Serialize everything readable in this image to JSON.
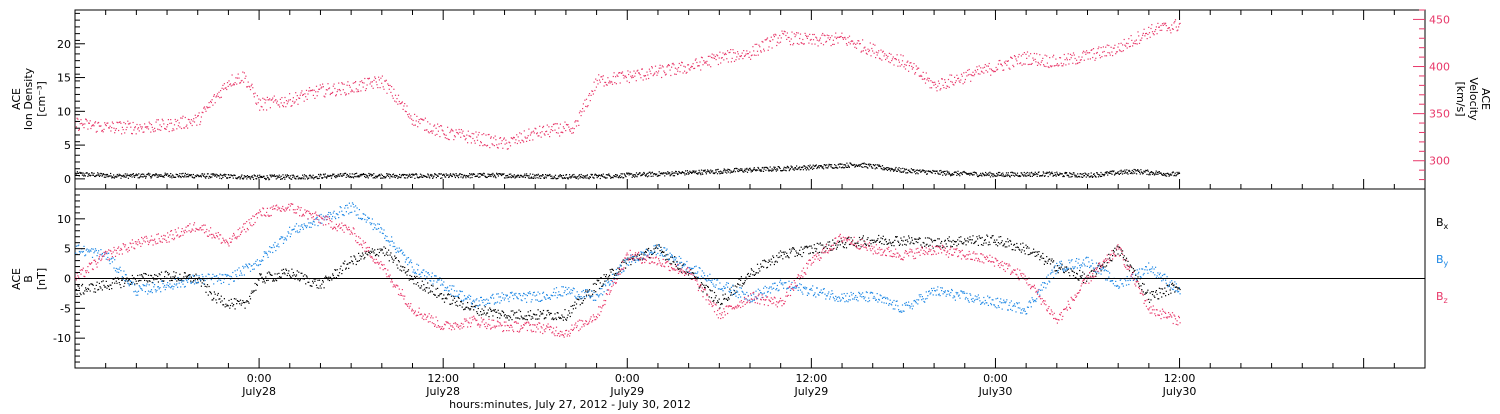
{
  "xaxis": {
    "title": "hours:minutes, July 27, 2012 - July 30, 2012",
    "ticks": [
      {
        "t": 12,
        "time": "0:00",
        "date": "July28"
      },
      {
        "t": 24,
        "time": "12:00",
        "date": "July28"
      },
      {
        "t": 36,
        "time": "0:00",
        "date": "July29"
      },
      {
        "t": 48,
        "time": "12:00",
        "date": "July29"
      },
      {
        "t": 60,
        "time": "0:00",
        "date": "July30"
      },
      {
        "t": 72,
        "time": "12:00",
        "date": "July30"
      }
    ]
  },
  "top_panel": {
    "left_label": [
      "ACE",
      "Ion Density",
      "[cm⁻³]"
    ],
    "right_label": [
      "ACE",
      "Velocity",
      "[km/s]"
    ]
  },
  "bottom_panel": {
    "left_label": [
      "ACE",
      "B",
      "[nT]"
    ],
    "legend": [
      {
        "name": "Bx",
        "base": "B",
        "sub": "x",
        "color": "#000000"
      },
      {
        "name": "By",
        "base": "B",
        "sub": "y",
        "color": "#1e88e5"
      },
      {
        "name": "Bz",
        "base": "B",
        "sub": "z",
        "color": "#e8386a"
      }
    ]
  },
  "colors": {
    "density": "#000000",
    "velocity": "#e8386a",
    "bx": "#000000",
    "by": "#1e88e5",
    "bz": "#e8386a",
    "frame": "#000000"
  },
  "chart_data": [
    {
      "type": "scatter",
      "title": "",
      "xlabel": "hours:minutes, July 27, 2012 - July 30, 2012",
      "x_units": "hours since 2012-07-27 00:00 UT",
      "xlim": [
        0,
        88
      ],
      "ylim": [
        -1.5,
        25
      ],
      "yticks": [
        0,
        5,
        10,
        15,
        20
      ],
      "ylabel": "Ion Density [cm⁻³]",
      "y2lim": [
        270,
        460
      ],
      "y2ticks": [
        300,
        350,
        400,
        450
      ],
      "y2label": "Velocity [km/s]",
      "series": [
        {
          "name": "Ion Density",
          "axis": "left",
          "x": [
            0,
            3,
            6,
            9,
            12,
            15,
            18,
            21,
            24,
            27,
            30,
            33,
            36,
            39,
            42,
            45,
            48,
            51,
            54,
            57,
            60,
            63,
            66,
            69,
            72
          ],
          "y": [
            0.8,
            0.5,
            0.6,
            0.5,
            0.3,
            0.4,
            0.6,
            0.5,
            0.5,
            0.6,
            0.5,
            0.4,
            0.6,
            0.9,
            1.2,
            1.5,
            1.8,
            2.2,
            1.3,
            0.9,
            0.7,
            0.8,
            0.6,
            1.2,
            0.7
          ]
        },
        {
          "name": "Velocity",
          "axis": "right",
          "x": [
            0,
            2,
            4,
            6,
            8,
            10,
            11,
            12,
            14,
            16,
            18,
            20,
            22,
            24,
            26,
            28,
            30,
            32,
            32.3,
            34,
            36,
            38,
            40,
            42,
            44,
            46,
            48,
            50,
            52,
            54,
            56,
            58,
            60,
            62,
            64,
            66,
            68,
            70,
            72
          ],
          "y": [
            340,
            336,
            336,
            338,
            344,
            385,
            390,
            360,
            365,
            375,
            378,
            385,
            345,
            330,
            325,
            318,
            330,
            335,
            328,
            385,
            390,
            395,
            400,
            410,
            415,
            432,
            428,
            430,
            418,
            405,
            380,
            390,
            400,
            410,
            405,
            412,
            420,
            438,
            445
          ]
        }
      ]
    },
    {
      "type": "scatter",
      "title": "",
      "xlabel": "hours:minutes, July 27, 2012 - July 30, 2012",
      "x_units": "hours since 2012-07-27 00:00 UT",
      "xlim": [
        0,
        88
      ],
      "ylim": [
        -15,
        15
      ],
      "yticks": [
        -10,
        -5,
        0,
        5,
        10
      ],
      "ylabel": "B [nT]",
      "zero_line": true,
      "series": [
        {
          "name": "Bx",
          "x": [
            0,
            2,
            4,
            6,
            8,
            9,
            10,
            11,
            12,
            14,
            16,
            18,
            20,
            22,
            24,
            26,
            28,
            30,
            32,
            34,
            36,
            38,
            40,
            42,
            44,
            46,
            48,
            50,
            52,
            54,
            56,
            58,
            60,
            62,
            64,
            66,
            68,
            70,
            72
          ],
          "y": [
            -2,
            -1,
            0,
            0.5,
            0,
            -3,
            -4,
            -4.5,
            0,
            1,
            -1,
            3,
            5,
            0,
            -3,
            -5,
            -6,
            -6,
            -6,
            -1,
            3,
            5,
            1,
            -4,
            1,
            4,
            5,
            6,
            6.5,
            6.5,
            6,
            6.5,
            6.5,
            5,
            2,
            0,
            5,
            -3,
            -1
          ]
        },
        {
          "name": "By",
          "x": [
            0,
            2,
            4,
            6,
            8,
            10,
            12,
            14,
            16,
            18,
            20,
            22,
            24,
            26,
            28,
            30,
            32,
            34,
            36,
            38,
            40,
            42,
            44,
            46,
            48,
            50,
            52,
            54,
            56,
            58,
            60,
            62,
            64,
            66,
            68,
            70,
            72
          ],
          "y": [
            5,
            4,
            -2,
            -1,
            0,
            0,
            3,
            8,
            10,
            12,
            8,
            2,
            -1,
            -4,
            -3,
            -3,
            -2,
            -3,
            3,
            5,
            2,
            -1,
            -3,
            -1,
            -2,
            -3,
            -3,
            -5,
            -2,
            -3,
            -4,
            -5,
            2,
            3,
            -1,
            2,
            -2
          ]
        },
        {
          "name": "Bz",
          "x": [
            0,
            2,
            4,
            6,
            8,
            10,
            12,
            14,
            16,
            18,
            20,
            22,
            24,
            26,
            28,
            30,
            32,
            34,
            36,
            38,
            40,
            42,
            44,
            46,
            48,
            50,
            52,
            54,
            56,
            58,
            60,
            62,
            64,
            66,
            68,
            70,
            72
          ],
          "y": [
            0,
            4,
            6,
            7,
            9,
            6,
            11,
            12,
            10,
            8,
            2,
            -5,
            -8,
            -7,
            -8,
            -8,
            -9,
            -6,
            4,
            3,
            1,
            -6,
            -3,
            -4,
            3,
            7,
            5,
            4,
            5,
            4,
            3,
            0,
            -7,
            0,
            5,
            -5,
            -7
          ]
        }
      ]
    }
  ]
}
